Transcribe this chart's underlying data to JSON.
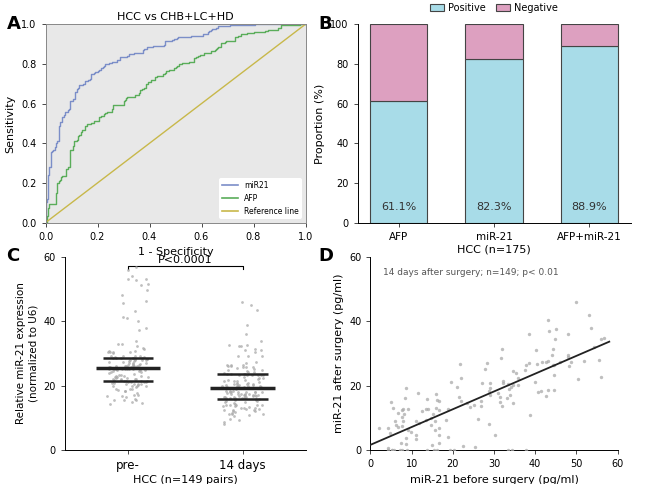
{
  "panel_A": {
    "title": "HCC vs CHB+LC+HD",
    "xlabel": "1 - Specificity",
    "ylabel": "Sensitivity",
    "bg_color": "#e8e8e8",
    "miR21_color": "#7b8ec8",
    "AFP_color": "#5aad5a",
    "ref_color": "#c8b84a",
    "xlim": [
      0.0,
      1.0
    ],
    "ylim": [
      0.0,
      1.0
    ],
    "xticks": [
      0.0,
      0.2,
      0.4,
      0.6,
      0.8,
      1.0
    ],
    "yticks": [
      0.0,
      0.2,
      0.4,
      0.6,
      0.8,
      1.0
    ]
  },
  "panel_B": {
    "categories": [
      "AFP",
      "miR-21",
      "AFP+miR-21"
    ],
    "positive": [
      61.1,
      82.3,
      88.9
    ],
    "negative": [
      38.9,
      17.7,
      11.1
    ],
    "positive_color": "#a8dce8",
    "negative_color": "#dda0c0",
    "positive_label": "Positive",
    "negative_label": "Negative",
    "ylabel": "Proportion (%)",
    "xlabel": "HCC (n=175)",
    "ylim": [
      0,
      100
    ],
    "yticks": [
      0,
      20,
      40,
      60,
      80,
      100
    ],
    "pct_labels": [
      "61.1%",
      "82.3%",
      "88.9%"
    ]
  },
  "panel_C": {
    "xlabel": "HCC (n=149 pairs)",
    "ylabel": "Relative miR-21 expression\n(normalized to U6)",
    "xlabels": [
      "pre-",
      "14 days"
    ],
    "ylim": [
      0,
      60
    ],
    "yticks": [
      0,
      20,
      40,
      60
    ],
    "pvalue_text": "P<0.0001",
    "dot_color": "#aaaaaa",
    "median_color": "#222222"
  },
  "panel_D": {
    "xlabel": "miR-21 before surgery (pg/ml)",
    "ylabel": "miR-21 after surgery (pg/ml)",
    "annotation": "14 days after surgery; n=149; p< 0.01",
    "xlim": [
      0,
      60
    ],
    "ylim": [
      0,
      60
    ],
    "xticks": [
      0,
      10,
      20,
      30,
      40,
      50,
      60
    ],
    "yticks": [
      0,
      20,
      40,
      60
    ],
    "dot_color": "#aaaaaa",
    "line_color": "#222222"
  },
  "panel_labels": [
    "A",
    "B",
    "C",
    "D"
  ],
  "label_fontsize": 13
}
